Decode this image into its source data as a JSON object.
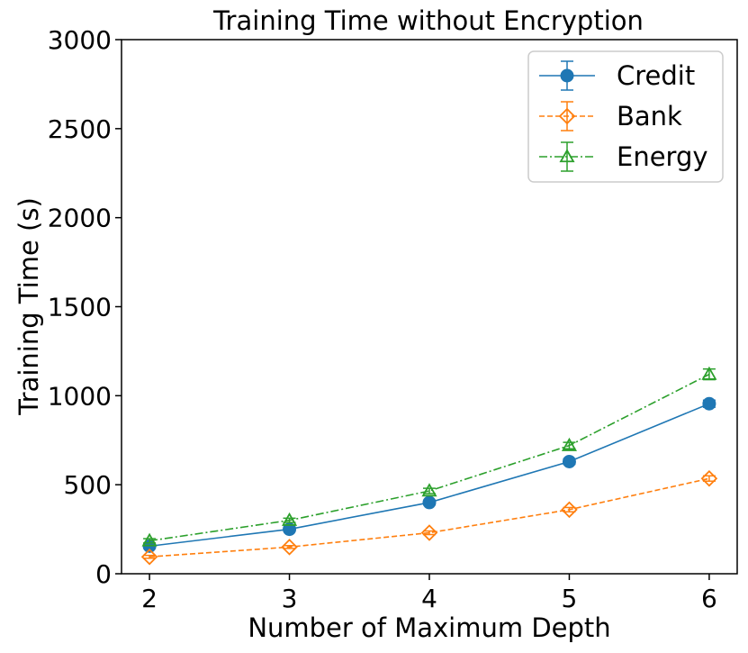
{
  "chart_data": {
    "type": "line",
    "title": "Training Time without Encryption",
    "xlabel": "Number of Maximum Depth",
    "ylabel": "Training Time (s)",
    "x": [
      2,
      3,
      4,
      5,
      6
    ],
    "xlim": [
      1.8,
      6.2
    ],
    "ylim": [
      0,
      3000
    ],
    "xticks": [
      "2",
      "3",
      "4",
      "5",
      "6"
    ],
    "yticks": [
      "0",
      "500",
      "1000",
      "1500",
      "2000",
      "2500",
      "3000"
    ],
    "grid": false,
    "legend_position": "top-right",
    "series": [
      {
        "name": "Credit",
        "values": [
          155,
          250,
          400,
          630,
          955
        ],
        "errors": [
          10,
          10,
          12,
          15,
          20
        ],
        "color": "#1f77b4",
        "marker": "circle",
        "line_style": "solid"
      },
      {
        "name": "Bank",
        "values": [
          95,
          150,
          230,
          360,
          535
        ],
        "errors": [
          8,
          8,
          10,
          12,
          15
        ],
        "color": "#ff7f0e",
        "marker": "diamond",
        "line_style": "dashed"
      },
      {
        "name": "Energy",
        "values": [
          185,
          300,
          465,
          720,
          1120
        ],
        "errors": [
          12,
          12,
          15,
          18,
          30
        ],
        "color": "#2ca02c",
        "marker": "triangle",
        "line_style": "dashdot"
      }
    ]
  }
}
